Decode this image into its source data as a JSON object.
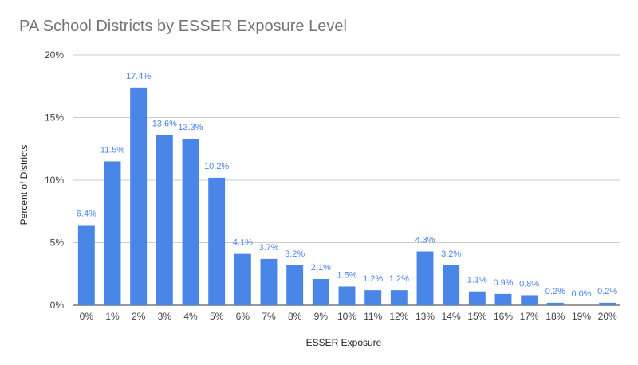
{
  "chart_data": {
    "type": "bar",
    "title": "PA School Districts by ESSER Exposure Level",
    "xlabel": "ESSER Exposure",
    "ylabel": "Percent of Districts",
    "categories": [
      "0%",
      "1%",
      "2%",
      "3%",
      "4%",
      "5%",
      "6%",
      "7%",
      "8%",
      "9%",
      "10%",
      "11%",
      "12%",
      "13%",
      "14%",
      "15%",
      "16%",
      "17%",
      "18%",
      "19%",
      "20%"
    ],
    "values": [
      6.4,
      11.5,
      17.4,
      13.6,
      13.3,
      10.2,
      4.1,
      3.7,
      3.2,
      2.1,
      1.5,
      1.2,
      1.2,
      4.3,
      3.2,
      1.1,
      0.9,
      0.8,
      0.2,
      0.0,
      0.2
    ],
    "data_labels": [
      "6.4%",
      "11.5%",
      "17.4%",
      "13.6%",
      "13.3%",
      "10.2%",
      "4.1%",
      "3.7%",
      "3.2%",
      "2.1%",
      "1.5%",
      "1.2%",
      "1.2%",
      "4.3%",
      "3.2%",
      "1.1%",
      "0.9%",
      "0.8%",
      "0.2%",
      "0.0%",
      "0.2%"
    ],
    "ylim": [
      0,
      20
    ],
    "yticks": [
      0,
      5,
      10,
      15,
      20
    ],
    "ytick_labels": [
      "0%",
      "5%",
      "10%",
      "15%",
      "20%"
    ],
    "grid": true,
    "bar_color": "#4a86e8",
    "label_color": "#4a86e8",
    "grid_color": "#cccccc"
  }
}
